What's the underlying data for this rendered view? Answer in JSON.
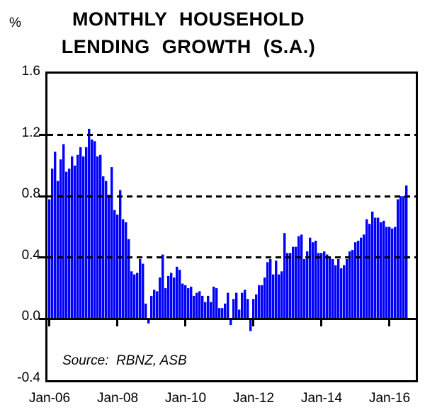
{
  "header": {
    "percent_label": "%",
    "title_line1": "MONTHLY HOUSEHOLD",
    "title_line2": "LENDING GROWTH (S.A.)"
  },
  "source_note": "Source:  RBNZ, ASB",
  "chart_data": {
    "type": "bar",
    "title": "MONTHLY HOUSEHOLD LENDING GROWTH (S.A.)",
    "ylabel": "%",
    "ylim": [
      -0.4,
      1.6
    ],
    "ytick_values": [
      1.6,
      1.2,
      0.8,
      0.4,
      0.0,
      -0.4
    ],
    "ytick_labels": [
      "1.6",
      "1.2",
      "0.8",
      "0.4",
      "0.0",
      "-0.4"
    ],
    "dashed_gridlines_at": [
      1.2,
      0.8,
      0.4
    ],
    "zero_line_at": 0.0,
    "xtick_labels": [
      "Jan-06",
      "Jan-08",
      "Jan-10",
      "Jan-12",
      "Jan-14",
      "Jan-16"
    ],
    "xtick_month_indices": [
      0,
      24,
      48,
      72,
      96,
      120
    ],
    "bar_color": "#0000FF",
    "grid": "dashed-horizontal",
    "legend": "none",
    "months": [
      "Jan-06",
      "Feb-06",
      "Mar-06",
      "Apr-06",
      "May-06",
      "Jun-06",
      "Jul-06",
      "Aug-06",
      "Sep-06",
      "Oct-06",
      "Nov-06",
      "Dec-06",
      "Jan-07",
      "Feb-07",
      "Mar-07",
      "Apr-07",
      "May-07",
      "Jun-07",
      "Jul-07",
      "Aug-07",
      "Sep-07",
      "Oct-07",
      "Nov-07",
      "Dec-07",
      "Jan-08",
      "Feb-08",
      "Mar-08",
      "Apr-08",
      "May-08",
      "Jun-08",
      "Jul-08",
      "Aug-08",
      "Sep-08",
      "Oct-08",
      "Nov-08",
      "Dec-08",
      "Jan-09",
      "Feb-09",
      "Mar-09",
      "Apr-09",
      "May-09",
      "Jun-09",
      "Jul-09",
      "Aug-09",
      "Sep-09",
      "Oct-09",
      "Nov-09",
      "Dec-09",
      "Jan-10",
      "Feb-10",
      "Mar-10",
      "Apr-10",
      "May-10",
      "Jun-10",
      "Jul-10",
      "Aug-10",
      "Sep-10",
      "Oct-10",
      "Nov-10",
      "Dec-10",
      "Jan-11",
      "Feb-11",
      "Mar-11",
      "Apr-11",
      "May-11",
      "Jun-11",
      "Jul-11",
      "Aug-11",
      "Sep-11",
      "Oct-11",
      "Nov-11",
      "Dec-11",
      "Jan-12",
      "Feb-12",
      "Mar-12",
      "Apr-12",
      "May-12",
      "Jun-12",
      "Jul-12",
      "Aug-12",
      "Sep-12",
      "Oct-12",
      "Nov-12",
      "Dec-12",
      "Jan-13",
      "Feb-13",
      "Mar-13",
      "Apr-13",
      "May-13",
      "Jun-13",
      "Jul-13",
      "Aug-13",
      "Sep-13",
      "Oct-13",
      "Nov-13",
      "Dec-13",
      "Jan-14",
      "Feb-14",
      "Mar-14",
      "Apr-14",
      "May-14",
      "Jun-14",
      "Jul-14",
      "Aug-14",
      "Sep-14",
      "Oct-14",
      "Nov-14",
      "Dec-14",
      "Jan-15",
      "Feb-15",
      "Mar-15",
      "Apr-15",
      "May-15",
      "Jun-15",
      "Jul-15",
      "Aug-15",
      "Sep-15",
      "Oct-15",
      "Nov-15",
      "Dec-15",
      "Jan-16",
      "Feb-16",
      "Mar-16",
      "Apr-16",
      "May-16",
      "Jun-16",
      "Jul-16"
    ],
    "values": [
      0.78,
      0.98,
      1.09,
      0.9,
      1.04,
      1.14,
      0.96,
      0.98,
      1.06,
      1.0,
      1.07,
      1.12,
      1.06,
      1.12,
      1.24,
      1.17,
      1.16,
      1.06,
      1.07,
      0.93,
      0.9,
      0.81,
      0.99,
      0.71,
      0.68,
      0.84,
      0.65,
      0.63,
      0.52,
      0.31,
      0.29,
      0.3,
      0.39,
      0.36,
      0.1,
      -0.03,
      0.15,
      0.19,
      0.18,
      0.27,
      0.42,
      0.2,
      0.28,
      0.3,
      0.27,
      0.34,
      0.32,
      0.23,
      0.22,
      0.2,
      0.21,
      0.15,
      0.17,
      0.18,
      0.15,
      0.11,
      0.15,
      0.11,
      0.21,
      0.2,
      0.07,
      0.07,
      0.1,
      0.17,
      -0.04,
      0.13,
      0.17,
      0.06,
      0.17,
      0.19,
      0.13,
      -0.08,
      0.13,
      0.16,
      0.22,
      0.22,
      0.27,
      0.37,
      0.39,
      0.29,
      0.38,
      0.29,
      0.31,
      0.56,
      0.43,
      0.43,
      0.47,
      0.47,
      0.54,
      0.55,
      0.39,
      0.44,
      0.53,
      0.5,
      0.51,
      0.43,
      0.43,
      0.44,
      0.42,
      0.4,
      0.39,
      0.35,
      0.39,
      0.33,
      0.35,
      0.39,
      0.44,
      0.45,
      0.5,
      0.51,
      0.53,
      0.55,
      0.65,
      0.62,
      0.7,
      0.66,
      0.66,
      0.63,
      0.64,
      0.6,
      0.6,
      0.59,
      0.6,
      0.78,
      0.8,
      0.8,
      0.87
    ]
  }
}
